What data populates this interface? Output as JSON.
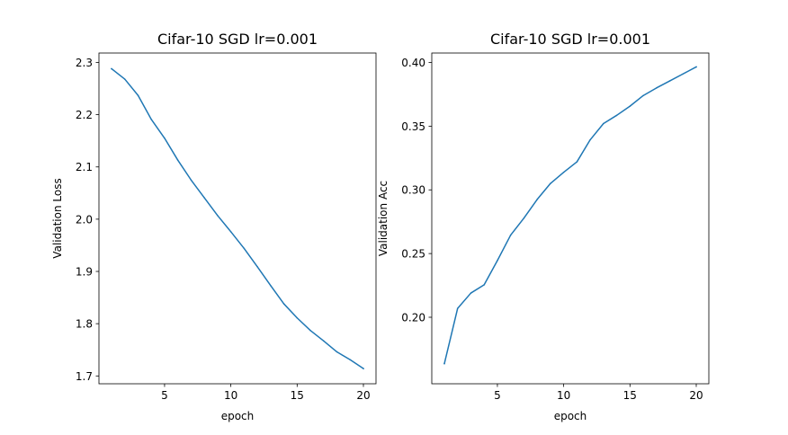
{
  "chart_data": [
    {
      "type": "line",
      "title": "Cifar-10 SGD lr=0.001",
      "xlabel": "epoch",
      "ylabel": "Validation Loss",
      "xlim": [
        0.05,
        20.95
      ],
      "ylim": [
        1.685,
        2.318
      ],
      "xticks": [
        5,
        10,
        15,
        20
      ],
      "yticks": [
        1.7,
        1.8,
        1.9,
        2.0,
        2.1,
        2.2,
        2.3
      ],
      "ytick_labels": [
        "1.7",
        "1.8",
        "1.9",
        "2.0",
        "2.1",
        "2.2",
        "2.3"
      ],
      "grid": false,
      "color": "#1f77b4",
      "x": [
        1,
        2,
        3,
        4,
        5,
        6,
        7,
        8,
        9,
        10,
        11,
        12,
        13,
        14,
        15,
        16,
        17,
        18,
        19,
        20
      ],
      "y": [
        2.288,
        2.268,
        2.237,
        2.191,
        2.155,
        2.113,
        2.075,
        2.041,
        2.007,
        1.976,
        1.944,
        1.909,
        1.873,
        1.838,
        1.811,
        1.787,
        1.767,
        1.746,
        1.731,
        1.714
      ]
    },
    {
      "type": "line",
      "title": "Cifar-10 SGD lr=0.001",
      "xlabel": "epoch",
      "ylabel": "Validation Acc",
      "xlim": [
        0.05,
        20.95
      ],
      "ylim": [
        0.1478,
        0.4074
      ],
      "xticks": [
        5,
        10,
        15,
        20
      ],
      "yticks": [
        0.2,
        0.25,
        0.3,
        0.35,
        0.4
      ],
      "ytick_labels": [
        "0.20",
        "0.25",
        "0.30",
        "0.35",
        "0.40"
      ],
      "grid": false,
      "color": "#1f77b4",
      "x": [
        1,
        2,
        3,
        4,
        5,
        6,
        7,
        8,
        9,
        10,
        11,
        12,
        13,
        14,
        15,
        16,
        17,
        18,
        19,
        20
      ],
      "y": [
        0.1636,
        0.207,
        0.219,
        0.2255,
        0.2445,
        0.2645,
        0.2778,
        0.2925,
        0.305,
        0.3138,
        0.322,
        0.3393,
        0.352,
        0.3585,
        0.3657,
        0.374,
        0.38,
        0.3855,
        0.391,
        0.3965
      ]
    }
  ]
}
